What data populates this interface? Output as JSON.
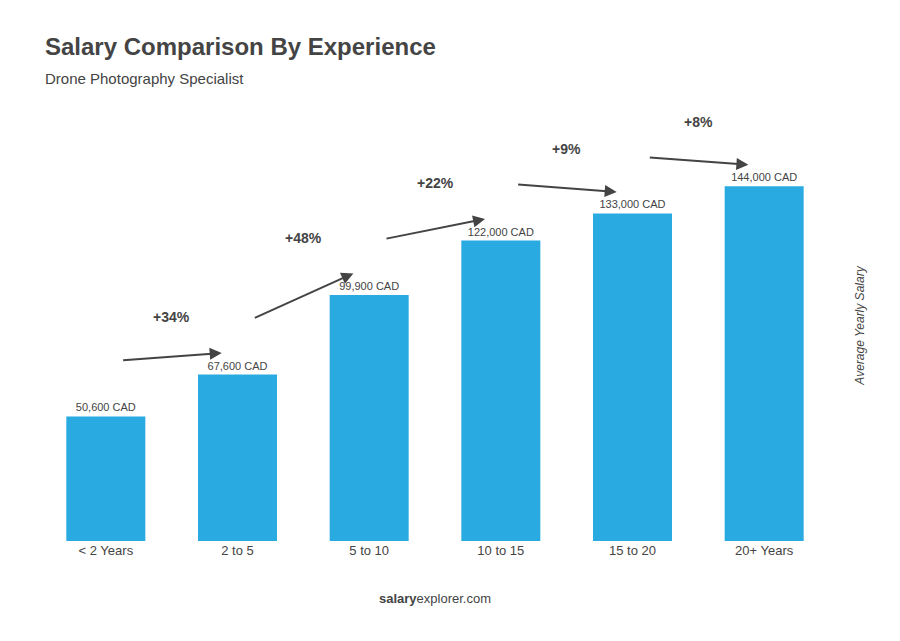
{
  "chart_data": {
    "type": "bar",
    "title": "Salary Comparison By Experience",
    "subtitle": "Drone Photography Specialist",
    "categories": [
      "< 2 Years",
      "2 to 5",
      "5 to 10",
      "10 to 15",
      "15 to 20",
      "20+ Years"
    ],
    "values": [
      50600,
      67600,
      99900,
      122000,
      133000,
      144000
    ],
    "value_labels": [
      "50,600 CAD",
      "67,600 CAD",
      "99,900 CAD",
      "122,000 CAD",
      "133,000 CAD",
      "144,000 CAD"
    ],
    "data_labels": true,
    "color": "#29ABE2",
    "ylabel": "Average Yearly Salary",
    "ylim": [
      0,
      175000
    ],
    "tick_labels": "x",
    "grid": false,
    "annotations": [
      "+34%",
      "+48%",
      "+22%",
      "+9%",
      "+8%"
    ],
    "footer": [
      "salary",
      "explorer.com"
    ]
  }
}
